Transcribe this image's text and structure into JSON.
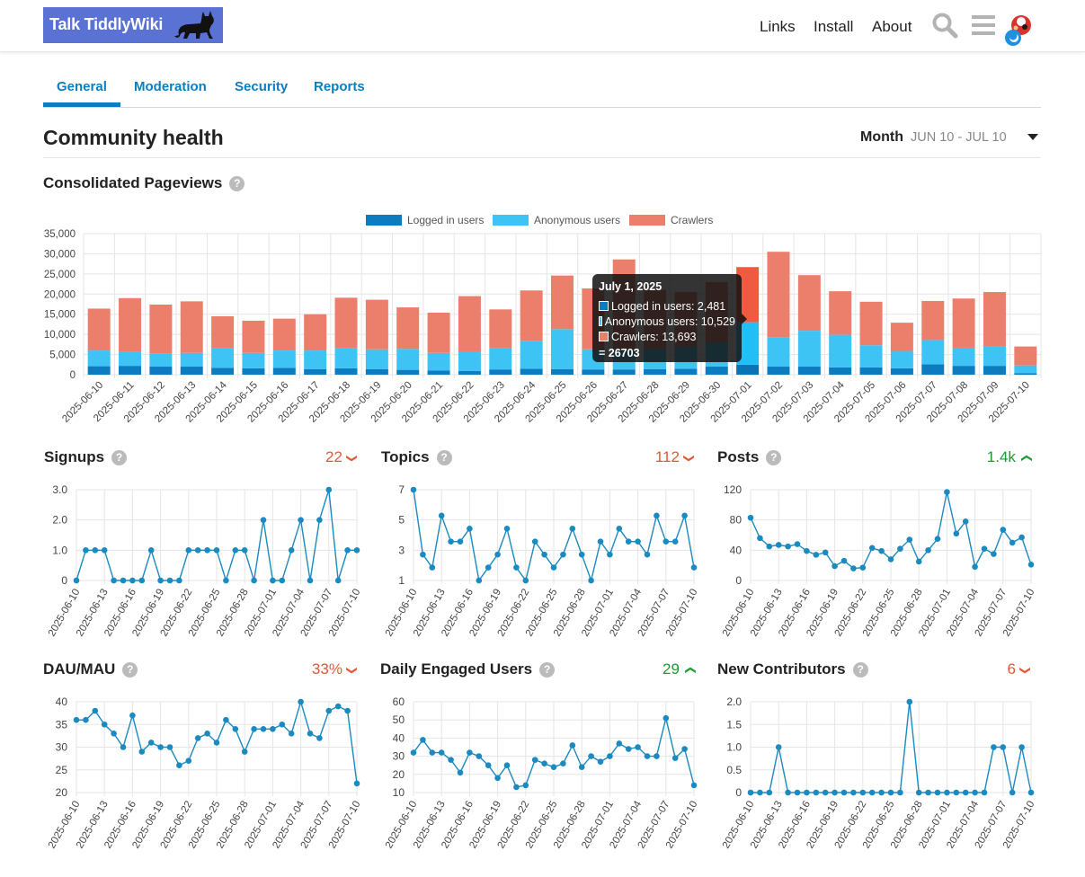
{
  "header": {
    "logo_text": "Talk TiddlyWiki",
    "nav": [
      "Links",
      "Install",
      "About"
    ]
  },
  "tabs": [
    "General",
    "Moderation",
    "Security",
    "Reports"
  ],
  "page": {
    "title": "Community health",
    "period_label": "Month",
    "period_range": "JUN 10 - JUL 10"
  },
  "colors": {
    "logged_in": "#0c7bbf",
    "anonymous": "#3dc4f5",
    "crawlers": "#ec7f6b",
    "line": "#1a8ac0",
    "accent": "#0a7fbf",
    "down": "#e45735",
    "up": "#1a9b33"
  },
  "pageviews": {
    "title": "Consolidated Pageviews",
    "help": "?"
  },
  "tooltip": {
    "title": "July 1, 2025",
    "rows": [
      "Logged in users: 2,481",
      "Anonymous users: 10,529",
      "Crawlers: 13,693"
    ],
    "total": "= 26703"
  },
  "metrics": {
    "signups": {
      "title": "Signups",
      "value": "22",
      "trend": "down"
    },
    "topics": {
      "title": "Topics",
      "value": "112",
      "trend": "down"
    },
    "posts": {
      "title": "Posts",
      "value": "1.4k",
      "trend": "up"
    },
    "dau_mau": {
      "title": "DAU/MAU",
      "value": "33%",
      "trend": "down"
    },
    "engaged": {
      "title": "Daily Engaged Users",
      "value": "29",
      "trend": "up"
    },
    "contributors": {
      "title": "New Contributors",
      "value": "6",
      "trend": "down"
    }
  },
  "chart_data": [
    {
      "type": "bar",
      "stacked": true,
      "title": "Consolidated Pageviews",
      "categories": [
        "2025-06-10",
        "2025-06-11",
        "2025-06-12",
        "2025-06-13",
        "2025-06-14",
        "2025-06-15",
        "2025-06-16",
        "2025-06-17",
        "2025-06-18",
        "2025-06-19",
        "2025-06-20",
        "2025-06-21",
        "2025-06-22",
        "2025-06-23",
        "2025-06-24",
        "2025-06-25",
        "2025-06-26",
        "2025-06-27",
        "2025-06-28",
        "2025-06-29",
        "2025-06-30",
        "2025-07-01",
        "2025-07-02",
        "2025-07-03",
        "2025-07-04",
        "2025-07-05",
        "2025-07-06",
        "2025-07-07",
        "2025-07-08",
        "2025-07-09",
        "2025-07-10"
      ],
      "series": [
        {
          "name": "Logged in users",
          "values": [
            2100,
            2200,
            2000,
            2000,
            1700,
            1600,
            1700,
            1400,
            1600,
            1400,
            1200,
            1000,
            900,
            1300,
            1500,
            1400,
            1300,
            1300,
            1400,
            1500,
            2000,
            2481,
            2000,
            2000,
            1800,
            1800,
            1600,
            2600,
            2200,
            2200,
            400
          ]
        },
        {
          "name": "Anonymous users",
          "values": [
            3900,
            3400,
            3200,
            3400,
            4900,
            3800,
            4300,
            4600,
            5000,
            4900,
            5200,
            4400,
            4900,
            5200,
            6800,
            9900,
            5000,
            5000,
            5000,
            5500,
            6000,
            10529,
            7200,
            8900,
            8100,
            5500,
            4300,
            6000,
            4500,
            4800,
            1900
          ]
        },
        {
          "name": "Crawlers",
          "values": [
            10400,
            13400,
            12200,
            12800,
            7900,
            8000,
            7900,
            9000,
            12500,
            12300,
            10300,
            10000,
            13700,
            9700,
            12600,
            13300,
            15100,
            22300,
            14600,
            13500,
            15000,
            13693,
            21300,
            13800,
            10800,
            10800,
            7000,
            9700,
            12200,
            13500,
            4700
          ]
        }
      ],
      "ylim": [
        0,
        35000
      ],
      "yticks": [
        "0",
        "5,000",
        "10,000",
        "15,000",
        "20,000",
        "25,000",
        "30,000",
        "35,000"
      ],
      "legend": "top-center"
    },
    {
      "type": "line",
      "title": "Signups",
      "values": [
        0,
        1,
        1,
        1,
        0,
        0,
        0,
        0,
        1,
        0,
        0,
        0,
        1,
        1,
        1,
        1,
        0,
        1,
        1,
        0,
        2,
        0,
        0,
        1,
        2,
        0,
        2,
        3,
        0,
        1,
        1
      ],
      "ylim": [
        0,
        3
      ],
      "yticks": [
        "0",
        "1.0",
        "2.0",
        "3.0"
      ]
    },
    {
      "type": "line",
      "title": "Topics",
      "values": [
        8,
        3,
        2,
        6,
        4,
        4,
        5,
        1,
        2,
        3,
        5,
        2,
        1,
        4,
        3,
        2,
        3,
        5,
        3,
        1,
        4,
        3,
        5,
        4,
        4,
        3,
        6,
        4,
        4,
        6,
        2
      ],
      "ylim": [
        1,
        8
      ],
      "yticks": [
        "1",
        "3",
        "5",
        "7"
      ]
    },
    {
      "type": "line",
      "title": "Posts",
      "values": [
        83,
        56,
        45,
        47,
        45,
        48,
        39,
        34,
        37,
        19,
        26,
        16,
        17,
        43,
        39,
        28,
        42,
        54,
        25,
        40,
        55,
        117,
        62,
        78,
        18,
        42,
        35,
        67,
        50,
        57,
        21
      ],
      "ylim": [
        0,
        120
      ],
      "yticks": [
        "0",
        "40",
        "80",
        "120"
      ]
    },
    {
      "type": "line",
      "title": "DAU/MAU",
      "values": [
        36,
        36,
        38,
        35,
        33,
        30,
        37,
        29,
        31,
        30,
        30,
        26,
        27,
        32,
        33,
        31,
        36,
        34,
        29,
        34,
        34,
        34,
        35,
        33,
        40,
        33,
        32,
        38,
        39,
        38,
        22
      ],
      "ylim": [
        20,
        40
      ],
      "yticks": [
        "20",
        "25",
        "30",
        "35",
        "40"
      ]
    },
    {
      "type": "line",
      "title": "Daily Engaged Users",
      "values": [
        32,
        39,
        32,
        32,
        28,
        21,
        32,
        30,
        25,
        18,
        25,
        13,
        14,
        28,
        26,
        24,
        26,
        36,
        24,
        30,
        27,
        30,
        37,
        34,
        35,
        30,
        30,
        51,
        29,
        34,
        14
      ],
      "ylim": [
        10,
        60
      ],
      "yticks": [
        "10",
        "20",
        "30",
        "40",
        "50",
        "60"
      ]
    },
    {
      "type": "line",
      "title": "New Contributors",
      "values": [
        0,
        0,
        0,
        1,
        0,
        0,
        0,
        0,
        0,
        0,
        0,
        0,
        0,
        0,
        0,
        0,
        0,
        2,
        0,
        0,
        0,
        0,
        0,
        0,
        0,
        0,
        1,
        1,
        0,
        1,
        0
      ],
      "ylim": [
        0,
        2
      ],
      "yticks": [
        "0",
        "0.5",
        "1.0",
        "1.5",
        "2.0"
      ]
    }
  ],
  "mini_xticks": [
    "2025-06-10",
    "2025-06-13",
    "2025-06-16",
    "2025-06-19",
    "2025-06-22",
    "2025-06-25",
    "2025-06-28",
    "2025-07-01",
    "2025-07-04",
    "2025-07-07",
    "2025-07-10"
  ]
}
